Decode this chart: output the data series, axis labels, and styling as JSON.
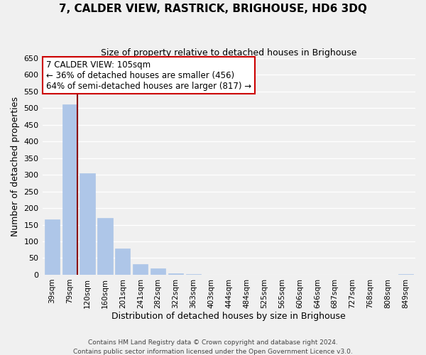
{
  "title": "7, CALDER VIEW, RASTRICK, BRIGHOUSE, HD6 3DQ",
  "subtitle": "Size of property relative to detached houses in Brighouse",
  "xlabel": "Distribution of detached houses by size in Brighouse",
  "ylabel": "Number of detached properties",
  "bar_labels": [
    "39sqm",
    "79sqm",
    "120sqm",
    "160sqm",
    "201sqm",
    "241sqm",
    "282sqm",
    "322sqm",
    "363sqm",
    "403sqm",
    "444sqm",
    "484sqm",
    "525sqm",
    "565sqm",
    "606sqm",
    "646sqm",
    "687sqm",
    "727sqm",
    "768sqm",
    "808sqm",
    "849sqm"
  ],
  "bar_values": [
    165,
    511,
    305,
    170,
    78,
    32,
    20,
    5,
    1,
    0,
    0,
    0,
    0,
    0,
    0,
    0,
    0,
    0,
    0,
    0,
    3
  ],
  "bar_color": "#aec6e8",
  "vline_x_index": 1,
  "vline_color": "#8b0000",
  "ylim": [
    0,
    650
  ],
  "yticks": [
    0,
    50,
    100,
    150,
    200,
    250,
    300,
    350,
    400,
    450,
    500,
    550,
    600,
    650
  ],
  "annotation_title": "7 CALDER VIEW: 105sqm",
  "annotation_line1": "← 36% of detached houses are smaller (456)",
  "annotation_line2": "64% of semi-detached houses are larger (817) →",
  "annotation_box_color": "#ffffff",
  "annotation_border_color": "#cc0000",
  "footer_line1": "Contains HM Land Registry data © Crown copyright and database right 2024.",
  "footer_line2": "Contains public sector information licensed under the Open Government Licence v3.0.",
  "background_color": "#f0f0f0",
  "grid_color": "#ffffff",
  "title_fontsize": 11,
  "subtitle_fontsize": 9
}
